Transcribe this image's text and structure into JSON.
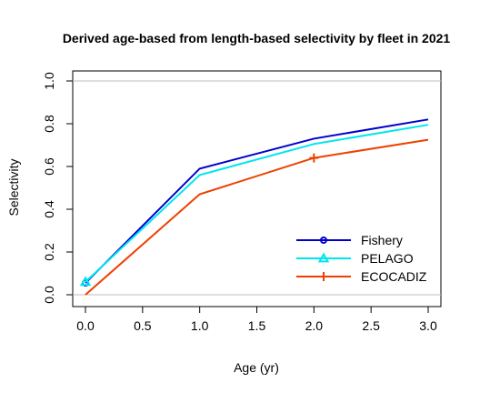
{
  "chart_data": {
    "type": "line",
    "title": "Derived age-based from length-based selectivity by fleet in 2021",
    "xlabel": "Age (yr)",
    "ylabel": "Selectivity",
    "xlim": [
      0,
      3
    ],
    "ylim": [
      0,
      1
    ],
    "x_ticks": [
      "0.0",
      "0.5",
      "1.0",
      "1.5",
      "2.0",
      "2.5",
      "3.0"
    ],
    "y_ticks": [
      "0.0",
      "0.2",
      "0.4",
      "0.6",
      "0.8",
      "1.0"
    ],
    "reference_lines": [
      0,
      1
    ],
    "legend_position": "bottom-right",
    "x": [
      0,
      1,
      2,
      3
    ],
    "series": [
      {
        "name": "Fishery",
        "values": [
          0.055,
          0.59,
          0.73,
          0.82
        ],
        "color": "#0000cd",
        "marker": "circle"
      },
      {
        "name": "PELAGO",
        "values": [
          0.06,
          0.56,
          0.705,
          0.795
        ],
        "color": "#00e5ee",
        "marker": "triangle"
      },
      {
        "name": "ECOCADIZ",
        "values": [
          0.0,
          0.47,
          0.64,
          0.725
        ],
        "color": "#ee4000",
        "marker": "plus"
      }
    ]
  }
}
